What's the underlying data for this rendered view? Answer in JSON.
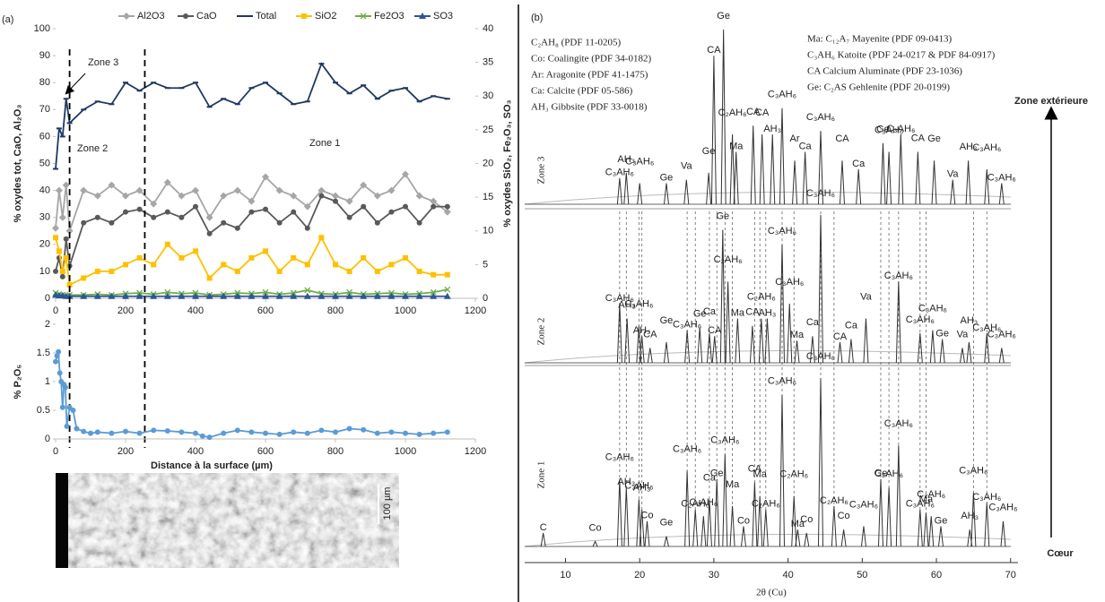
{
  "chart_data": [
    {
      "type": "line",
      "panel_label": "(a)",
      "ylabel": "% oxydes tot, CaO, Al₂O₃",
      "y2label": "% oxydes SiO₂, Fe₂O₃, SO₃",
      "xlim": [
        0,
        1200
      ],
      "xticks": [
        0,
        200,
        400,
        600,
        800,
        1000,
        1200
      ],
      "ylim": [
        0,
        100
      ],
      "yticks": [
        0,
        10,
        20,
        30,
        40,
        50,
        60,
        70,
        80,
        90,
        100
      ],
      "y2lim": [
        0,
        40
      ],
      "y2ticks": [
        0,
        5,
        10,
        15,
        20,
        25,
        30,
        35,
        40
      ],
      "legend": "top",
      "annotations": [
        "Zone 3",
        "Zone 2",
        "Zone 1"
      ],
      "zone_boundaries": [
        40,
        255
      ],
      "x": [
        0,
        10,
        20,
        30,
        40,
        80,
        120,
        160,
        200,
        240,
        280,
        320,
        360,
        400,
        440,
        480,
        520,
        560,
        600,
        640,
        680,
        720,
        760,
        800,
        840,
        880,
        920,
        960,
        1000,
        1040,
        1080,
        1120
      ],
      "series": [
        {
          "name": "Al2O3",
          "color": "#a6a6a6",
          "marker": "diamond",
          "values": [
            26,
            40,
            30,
            42,
            25,
            40,
            38,
            42,
            38,
            40,
            35,
            43,
            38,
            40,
            30,
            38,
            40,
            36,
            45,
            40,
            38,
            34,
            40,
            38,
            36,
            42,
            38,
            40,
            46,
            38,
            36,
            32
          ]
        },
        {
          "name": "CaO",
          "color": "#595959",
          "marker": "circle",
          "values": [
            10,
            15,
            8,
            22,
            12,
            28,
            30,
            28,
            32,
            33,
            30,
            32,
            30,
            34,
            24,
            28,
            26,
            32,
            33,
            28,
            32,
            26,
            38,
            36,
            30,
            34,
            28,
            32,
            34,
            28,
            34,
            34
          ]
        },
        {
          "name": "Total",
          "color": "#1f3864",
          "marker": "dash",
          "values": [
            48,
            63,
            60,
            74,
            65,
            70,
            73,
            72,
            80,
            77,
            80,
            78,
            78,
            80,
            71,
            74,
            72,
            78,
            80,
            76,
            72,
            73,
            87,
            80,
            76,
            79,
            74,
            77,
            78,
            73,
            75,
            74
          ]
        },
        {
          "name": "SiO2",
          "color": "#ffc000",
          "marker": "square",
          "axis": "y2",
          "values": [
            9,
            7,
            4,
            6,
            2,
            3,
            4,
            4,
            5,
            6,
            5,
            8,
            6,
            7,
            3,
            5,
            4,
            6,
            7,
            4,
            6,
            5,
            9,
            5,
            4,
            6,
            4,
            5,
            6,
            4,
            3.5,
            3.5
          ]
        },
        {
          "name": "Fe2O3",
          "color": "#70ad47",
          "marker": "cross",
          "axis": "y2",
          "values": [
            0.8,
            0.6,
            0.5,
            0.4,
            0.5,
            0.5,
            0.6,
            0.5,
            0.7,
            0.8,
            0.6,
            0.9,
            0.7,
            0.8,
            0.5,
            0.6,
            0.8,
            0.7,
            0.9,
            0.6,
            0.8,
            1.2,
            0.7,
            0.6,
            0.9,
            0.6,
            0.7,
            0.8,
            0.6,
            0.7,
            0.9,
            1.3
          ]
        },
        {
          "name": "SO3",
          "color": "#2e5597",
          "marker": "triangle",
          "axis": "y2",
          "values": [
            0.5,
            0.4,
            0.4,
            0.3,
            0.3,
            0.3,
            0.3,
            0.3,
            0.3,
            0.3,
            0.3,
            0.3,
            0.3,
            0.3,
            0.3,
            0.3,
            0.3,
            0.3,
            0.3,
            0.3,
            0.3,
            0.3,
            0.3,
            0.3,
            0.3,
            0.3,
            0.3,
            0.3,
            0.3,
            0.3,
            0.3,
            0.3
          ]
        }
      ]
    },
    {
      "type": "line",
      "ylabel": "% P₂O₅",
      "xlabel": "Distance à la surface (µm)",
      "xlim": [
        0,
        1200
      ],
      "xticks": [
        0,
        200,
        400,
        600,
        800,
        1000,
        1200
      ],
      "ylim": [
        0,
        2
      ],
      "yticks": [
        0,
        0.5,
        1,
        1.5,
        2
      ],
      "image_scale_label": "100 µm",
      "x": [
        0,
        4,
        8,
        12,
        16,
        20,
        24,
        28,
        32,
        40,
        50,
        60,
        80,
        100,
        120,
        160,
        200,
        240,
        280,
        320,
        360,
        400,
        420,
        440,
        480,
        520,
        560,
        600,
        640,
        680,
        720,
        760,
        800,
        840,
        880,
        920,
        960,
        1000,
        1040,
        1080,
        1120
      ],
      "series": [
        {
          "name": "P2O5",
          "color": "#5b9bd5",
          "marker": "circle",
          "values": [
            1.35,
            1.45,
            1.52,
            1.15,
            1.0,
            0.55,
            0.95,
            0.9,
            0.22,
            0.55,
            0.5,
            0.18,
            0.13,
            0.1,
            0.12,
            0.1,
            0.13,
            0.1,
            0.15,
            0.14,
            0.12,
            0.1,
            0.05,
            0.03,
            0.1,
            0.15,
            0.12,
            0.1,
            0.08,
            0.12,
            0.1,
            0.15,
            0.12,
            0.18,
            0.16,
            0.1,
            0.12,
            0.1,
            0.08,
            0.1,
            0.12
          ]
        }
      ]
    },
    {
      "type": "xrd",
      "panel_label": "(b)",
      "xlabel": "2θ (Cu)",
      "xlim": [
        4.5,
        71
      ],
      "xticks": [
        10,
        20,
        30,
        40,
        50,
        60,
        70
      ],
      "ylim": [
        0,
        100
      ],
      "color": "#333333",
      "legend_left": [
        "C₂AH₈ (PDF 11-0205)",
        "Co: Coalingite (PDF 34-0182)",
        "Ar:  Aragonite (PDF 41-1475)",
        "Ca: Calcite (PDF 05-586)",
        "AH₃ Gibbsite (PDF 33-0018)"
      ],
      "legend_right": [
        "Ma: C₁₂A₇ Mayenite (PDF 09-0413)",
        "C₃AH₆ Katoite (PDF 24-0217 & PDF 84-0917)",
        "CA Calcium Aluminate (PDF 23-1036)",
        "Ge: C₂AS Gehlenite (PDF 20-0199)"
      ],
      "direction_labels": [
        "Zone extérieure",
        "Cœur"
      ],
      "series": [
        {
          "name": "Zone 3",
          "x": [
            17.3,
            18.2,
            20.0,
            23.6,
            26.3,
            29.3,
            30.0,
            31.3,
            32.5,
            33.0,
            35.3,
            36.5,
            37.9,
            39.2,
            40.9,
            42.3,
            44.4,
            47.3,
            49.5,
            52.8,
            53.6,
            55.2,
            57.5,
            59.7,
            62.2,
            64.3,
            66.8,
            68.8
          ],
          "values": [
            15,
            18,
            12,
            12,
            14,
            18,
            85,
            100,
            40,
            30,
            45,
            40,
            40,
            55,
            25,
            30,
            42,
            25,
            20,
            35,
            30,
            40,
            30,
            25,
            14,
            25,
            20,
            12
          ],
          "labels": [
            "C₃AH₆",
            "AH₃",
            "C₃AH₆",
            "Ge",
            "Va",
            "Ge",
            "CA",
            "Ge",
            "C₂AH₆",
            "Ma",
            "CA",
            "CA",
            "AH₃",
            "C₃AH₆",
            "Ar",
            "Ca",
            "C₃AH₆",
            "CA",
            "Ca",
            "Ge",
            "C₃AH₆",
            "C₃AH₆",
            "CA",
            "Ge",
            "Va",
            "AH₃",
            "C₃AH₆",
            "C₃AH₆"
          ]
        },
        {
          "name": "Zone 2",
          "x": [
            17.3,
            18.3,
            19.9,
            20.3,
            21.4,
            23.6,
            26.4,
            28.1,
            29.4,
            30.1,
            31.2,
            31.9,
            33.2,
            35.2,
            36.4,
            37.2,
            39.2,
            40.2,
            41.2,
            43.3,
            44.4,
            47.0,
            48.5,
            50.5,
            54.9,
            57.8,
            59.5,
            60.8,
            63.5,
            64.4,
            66.8,
            68.8
          ],
          "values": [
            40,
            30,
            25,
            18,
            10,
            14,
            22,
            24,
            20,
            18,
            90,
            55,
            30,
            25,
            30,
            30,
            80,
            40,
            15,
            18,
            100,
            14,
            16,
            30,
            55,
            20,
            22,
            16,
            10,
            14,
            20,
            10
          ],
          "labels": [
            "C₃AH₆",
            "AH₃",
            "C₃AH₆",
            "AH₃",
            "CA",
            "Ge",
            "C₃AH₆",
            "Ge",
            "Ca",
            "CA",
            "Ge",
            "C₂AH₆",
            "Ma",
            "CA",
            "C₂AH₆",
            "AH₃",
            "C₃AH₆",
            "C₃AH₆",
            "Ma",
            "Ca",
            "C₃AH₆",
            "CA",
            "Ca",
            "Va",
            "C₃AH₆",
            "C₃AH₆",
            "C₃AH₆",
            "Ge",
            "Va",
            "AH₃",
            "C₃AH₆",
            "C₃AH₆"
          ]
        },
        {
          "name": "Zone 1",
          "x": [
            7.0,
            14.0,
            17.3,
            18.2,
            19.9,
            20.3,
            21.0,
            23.6,
            26.4,
            27.5,
            28.6,
            29.4,
            30.4,
            31.5,
            32.5,
            34.0,
            35.5,
            36.2,
            37.0,
            39.2,
            40.8,
            41.3,
            42.5,
            44.4,
            46.2,
            47.5,
            50.2,
            52.5,
            53.6,
            54.9,
            57.8,
            58.6,
            59.3,
            60.6,
            64.5,
            65.0,
            66.8,
            69.0
          ],
          "values": [
            8,
            3,
            40,
            35,
            28,
            22,
            15,
            6,
            45,
            22,
            18,
            28,
            40,
            55,
            24,
            12,
            38,
            30,
            22,
            90,
            30,
            10,
            8,
            100,
            24,
            10,
            12,
            40,
            35,
            60,
            22,
            20,
            18,
            12,
            10,
            32,
            26,
            15
          ],
          "labels": [
            "C",
            "Co",
            "C₃AH₆",
            "AH₃",
            "C₃AH₆",
            "AH₃",
            "Co",
            "Ge",
            "C₃AH₆",
            "C₂AH₆",
            "C₂AH₆",
            "Ca",
            "Ge",
            "C₃AH₆",
            "Ma",
            "Co",
            "CA",
            "Ma",
            "C₂AH₆",
            "C₃AH₆",
            "C₂AH₆",
            "Ma",
            "Co",
            "C₃AH₆",
            "C₂AH₆",
            "Co",
            "C₃AH₆",
            "Ge",
            "C₂AH₆",
            "C₃AH₆",
            "C₃AH₆",
            "Ma",
            "C₂AH₆",
            "Ge",
            "AH₃",
            "C₃AH₆",
            "C₃AH₆",
            "C₃AH₆"
          ]
        }
      ]
    }
  ]
}
